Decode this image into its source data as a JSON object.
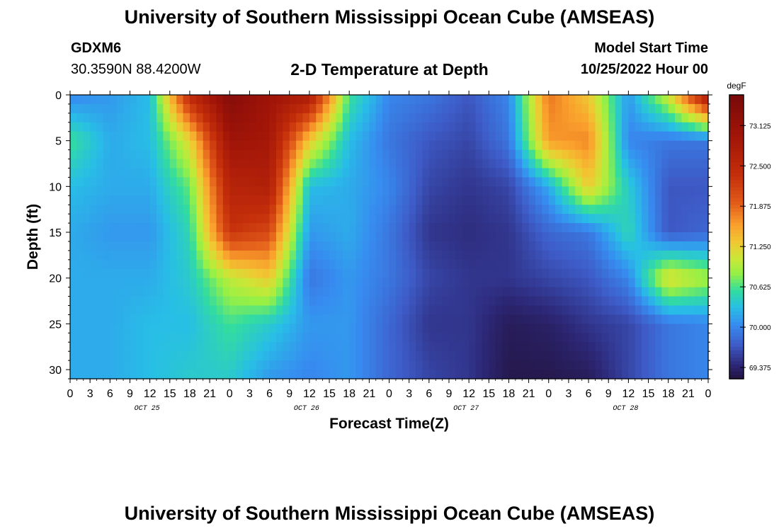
{
  "header": {
    "title": "University of Southern Mississippi Ocean Cube (AMSEAS)",
    "station": "GDXM6",
    "location": "30.3590N  88.4200W",
    "plot_title": "2-D Temperature at Depth",
    "start_label": "Model Start Time",
    "start_value": "10/25/2022 Hour 00"
  },
  "footer": {
    "title": "University of Southern Mississippi Ocean Cube (AMSEAS)"
  },
  "chart_data": {
    "type": "heatmap",
    "title": "2-D Temperature at Depth",
    "xlabel": "Forecast Time(Z)",
    "ylabel": "Depth (ft)",
    "colorbar_unit": "degF",
    "colorbar_ticks": [
      "69.375",
      "70.000",
      "70.625",
      "71.250",
      "71.875",
      "72.500",
      "73.125"
    ],
    "colorbar_range": [
      69.2,
      73.6
    ],
    "x_range_hours": [
      0,
      96
    ],
    "y_range_ft": [
      0,
      31
    ],
    "y_ticks": [
      "0",
      "5",
      "10",
      "15",
      "20",
      "25",
      "30"
    ],
    "x_tick_labels": [
      "0",
      "3",
      "6",
      "9",
      "12",
      "15",
      "18",
      "21",
      "0",
      "3",
      "6",
      "9",
      "12",
      "15",
      "18",
      "21",
      "0",
      "3",
      "6",
      "9",
      "12",
      "15",
      "18",
      "21",
      "0",
      "3",
      "6",
      "9",
      "12",
      "15",
      "18",
      "21",
      "0"
    ],
    "date_labels": [
      "OCT 25",
      "OCT 26",
      "OCT 27",
      "OCT 28"
    ],
    "depths_ft": [
      0,
      5,
      10,
      15,
      20,
      25,
      31
    ],
    "hours": [
      0,
      6,
      12,
      18,
      24,
      30,
      36,
      42,
      48,
      54,
      60,
      66,
      72,
      78,
      84,
      90,
      96
    ],
    "values_degF": [
      [
        70.0,
        70.1,
        70.3,
        72.5,
        73.4,
        73.0,
        72.8,
        70.6,
        70.0,
        69.9,
        69.7,
        70.0,
        71.8,
        71.3,
        70.1,
        71.1,
        72.9
      ],
      [
        70.6,
        70.2,
        70.3,
        71.2,
        73.0,
        72.9,
        71.3,
        70.3,
        69.9,
        69.7,
        69.6,
        69.9,
        71.6,
        71.7,
        70.0,
        69.9,
        69.9
      ],
      [
        70.3,
        70.2,
        70.2,
        70.7,
        72.6,
        72.7,
        70.3,
        70.2,
        70.0,
        69.6,
        69.5,
        69.6,
        70.2,
        71.3,
        70.4,
        69.7,
        69.7
      ],
      [
        70.2,
        70.1,
        70.1,
        70.5,
        72.3,
        72.1,
        70.1,
        70.2,
        69.9,
        69.5,
        69.45,
        69.5,
        69.8,
        69.9,
        70.5,
        69.7,
        69.8
      ],
      [
        70.2,
        70.2,
        70.2,
        70.4,
        71.0,
        71.3,
        69.9,
        70.1,
        69.9,
        69.6,
        69.5,
        69.5,
        69.6,
        69.7,
        70.0,
        71.2,
        70.9
      ],
      [
        70.2,
        70.2,
        70.3,
        70.3,
        70.6,
        70.4,
        70.1,
        70.1,
        69.8,
        69.5,
        69.5,
        69.3,
        69.35,
        69.5,
        69.6,
        69.9,
        70.0
      ],
      [
        70.2,
        70.2,
        70.3,
        70.4,
        70.4,
        70.1,
        70.0,
        70.1,
        69.8,
        69.6,
        69.5,
        69.25,
        69.25,
        69.3,
        69.6,
        69.9,
        70.0
      ]
    ]
  }
}
